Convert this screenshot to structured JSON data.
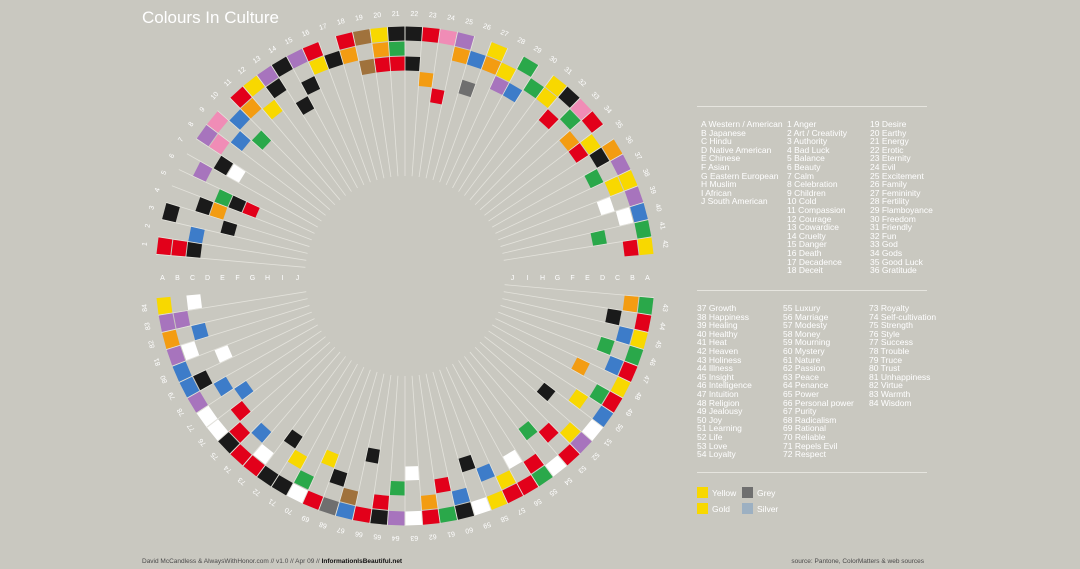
{
  "title": "Colours In Culture",
  "credit": {
    "left": "David McCandless & AlwaysWithHonor.com // v1.0 // Apr 09 //",
    "brand": "InformationIsBeautiful.net"
  },
  "source": "source: Pantone, ColorMatters & web sources",
  "colors": {
    "yellow": "#f8d800",
    "gold": "#f39c12",
    "grey": "#6f6f6f",
    "silver": "#9cb0c2",
    "red": "#e2001a",
    "black": "#1a1a1a",
    "white": "#ffffff",
    "green": "#2aa84a",
    "blue": "#3d7cc9",
    "purple": "#a774bd",
    "pink": "#f08cb6",
    "brown": "#a0723c",
    "orange": "#f39c12"
  },
  "cultures": [
    "A Western / American",
    "B Japanese",
    "C Hindu",
    "D Native American",
    "E Chinese",
    "F Asian",
    "G Eastern European",
    "H Muslim",
    "I African",
    "J South American"
  ],
  "culture_letters": [
    "A",
    "B",
    "C",
    "D",
    "E",
    "F",
    "G",
    "H",
    "I",
    "J"
  ],
  "meanings_1": [
    "1 Anger",
    "2 Art / Creativity",
    "3 Authority",
    "4 Bad Luck",
    "5 Balance",
    "6 Beauty",
    "7 Calm",
    "8 Celebration",
    "9 Children",
    "10 Cold",
    "11 Compassion",
    "12 Courage",
    "13 Cowardice",
    "14 Cruelty",
    "15 Danger",
    "16 Death",
    "17 Decadence",
    "18 Deceit"
  ],
  "meanings_2": [
    "19 Desire",
    "20 Earthy",
    "21 Energy",
    "22 Erotic",
    "23 Eternity",
    "24 Evil",
    "25 Excitement",
    "26 Family",
    "27 Femininity",
    "28 Fertility",
    "29 Flamboyance",
    "30 Freedom",
    "31 Friendly",
    "32 Fun",
    "33 God",
    "34 Gods",
    "35 Good Luck",
    "36 Gratitude"
  ],
  "meanings_3": [
    "37 Growth",
    "38 Happiness",
    "39 Healing",
    "40 Healthy",
    "41 Heat",
    "42 Heaven",
    "43 Holiness",
    "44 Illness",
    "45 Insight",
    "46 Intelligence",
    "47 Intuition",
    "48 Religion",
    "49 Jealousy",
    "50 Joy",
    "51 Learning",
    "52 Life",
    "53 Love",
    "54 Loyalty"
  ],
  "meanings_4": [
    "55 Luxury",
    "56 Marriage",
    "57 Modesty",
    "58 Money",
    "59 Mourning",
    "60 Mystery",
    "61 Nature",
    "62 Passion",
    "63 Peace",
    "64 Penance",
    "65 Power",
    "66 Personal power",
    "67 Purity",
    "68 Radicalism",
    "69 Rational",
    "70 Reliable",
    "71 Repels Evil",
    "72 Respect"
  ],
  "meanings_5": [
    "73 Royalty",
    "74 Self-cultivation",
    "75 Strength",
    "76 Style",
    "77 Success",
    "78 Trouble",
    "79 Truce",
    "80 Trust",
    "81 Unhappiness",
    "82 Virtue",
    "83 Warmth",
    "84 Wisdom"
  ],
  "swatches": [
    {
      "label": "Yellow",
      "color": "#f8d800"
    },
    {
      "label": "Grey",
      "color": "#6f6f6f"
    },
    {
      "label": "Gold",
      "color": "#f8d800"
    },
    {
      "label": "Silver",
      "color": "#9cb0c2"
    }
  ],
  "wheel": {
    "spokes": 84,
    "rings": 10,
    "cells": [
      [
        1,
        0,
        "red"
      ],
      [
        1,
        1,
        "red"
      ],
      [
        1,
        2,
        "black"
      ],
      [
        2,
        2,
        "blue"
      ],
      [
        3,
        0,
        "black"
      ],
      [
        3,
        4,
        "black"
      ],
      [
        4,
        2,
        "black"
      ],
      [
        4,
        3,
        "gold"
      ],
      [
        5,
        4,
        "black"
      ],
      [
        5,
        3,
        "green"
      ],
      [
        5,
        5,
        "red"
      ],
      [
        6,
        1,
        "purple"
      ],
      [
        7,
        2,
        "black"
      ],
      [
        7,
        3,
        "white"
      ],
      [
        8,
        0,
        "purple"
      ],
      [
        8,
        1,
        "pink"
      ],
      [
        9,
        0,
        "pink"
      ],
      [
        9,
        2,
        "blue"
      ],
      [
        10,
        1,
        "blue"
      ],
      [
        10,
        3,
        "green"
      ],
      [
        11,
        0,
        "red"
      ],
      [
        11,
        1,
        "gold"
      ],
      [
        12,
        0,
        "yellow"
      ],
      [
        12,
        2,
        "yellow"
      ],
      [
        13,
        0,
        "purple"
      ],
      [
        13,
        1,
        "black"
      ],
      [
        14,
        0,
        "black"
      ],
      [
        14,
        3,
        "black"
      ],
      [
        15,
        0,
        "purple"
      ],
      [
        15,
        2,
        "black"
      ],
      [
        16,
        0,
        "red"
      ],
      [
        16,
        1,
        "yellow"
      ],
      [
        17,
        1,
        "black"
      ],
      [
        18,
        0,
        "red"
      ],
      [
        18,
        1,
        "gold"
      ],
      [
        19,
        0,
        "brown"
      ],
      [
        19,
        2,
        "brown"
      ],
      [
        20,
        0,
        "yellow"
      ],
      [
        20,
        1,
        "gold"
      ],
      [
        20,
        2,
        "red"
      ],
      [
        21,
        0,
        "black"
      ],
      [
        21,
        1,
        "green"
      ],
      [
        21,
        2,
        "red"
      ],
      [
        22,
        0,
        "black"
      ],
      [
        22,
        2,
        "black"
      ],
      [
        23,
        0,
        "red"
      ],
      [
        23,
        3,
        "gold"
      ],
      [
        24,
        0,
        "pink"
      ],
      [
        24,
        4,
        "red"
      ],
      [
        25,
        0,
        "purple"
      ],
      [
        25,
        1,
        "gold"
      ],
      [
        26,
        1,
        "blue"
      ],
      [
        26,
        3,
        "grey"
      ],
      [
        27,
        0,
        "yellow"
      ],
      [
        27,
        1,
        "gold"
      ],
      [
        28,
        1,
        "yellow"
      ],
      [
        28,
        2,
        "purple"
      ],
      [
        29,
        0,
        "green"
      ],
      [
        29,
        2,
        "blue"
      ],
      [
        30,
        1,
        "green"
      ],
      [
        31,
        0,
        "yellow"
      ],
      [
        31,
        1,
        "yellow"
      ],
      [
        32,
        0,
        "black"
      ],
      [
        32,
        2,
        "red"
      ],
      [
        33,
        0,
        "pink"
      ],
      [
        33,
        1,
        "green"
      ],
      [
        34,
        0,
        "red"
      ],
      [
        34,
        2,
        "gold"
      ],
      [
        35,
        2,
        "red"
      ],
      [
        35,
        1,
        "yellow"
      ],
      [
        36,
        0,
        "gold"
      ],
      [
        36,
        1,
        "black"
      ],
      [
        37,
        0,
        "purple"
      ],
      [
        37,
        2,
        "green"
      ],
      [
        38,
        0,
        "yellow"
      ],
      [
        38,
        1,
        "yellow"
      ],
      [
        39,
        0,
        "purple"
      ],
      [
        39,
        2,
        "white"
      ],
      [
        40,
        0,
        "blue"
      ],
      [
        40,
        1,
        "white"
      ],
      [
        41,
        0,
        "green"
      ],
      [
        41,
        3,
        "green"
      ],
      [
        42,
        0,
        "yellow"
      ],
      [
        42,
        1,
        "red"
      ],
      [
        43,
        0,
        "green"
      ],
      [
        43,
        1,
        "gold"
      ],
      [
        44,
        0,
        "red"
      ],
      [
        44,
        2,
        "black"
      ],
      [
        45,
        0,
        "yellow"
      ],
      [
        45,
        1,
        "blue"
      ],
      [
        46,
        0,
        "green"
      ],
      [
        46,
        2,
        "green"
      ],
      [
        47,
        0,
        "red"
      ],
      [
        47,
        1,
        "blue"
      ],
      [
        48,
        0,
        "yellow"
      ],
      [
        48,
        3,
        "gold"
      ],
      [
        49,
        0,
        "red"
      ],
      [
        49,
        1,
        "green"
      ],
      [
        50,
        0,
        "blue"
      ],
      [
        50,
        2,
        "yellow"
      ],
      [
        51,
        0,
        "white"
      ],
      [
        51,
        4,
        "black"
      ],
      [
        52,
        0,
        "purple"
      ],
      [
        52,
        1,
        "yellow"
      ],
      [
        53,
        0,
        "red"
      ],
      [
        53,
        2,
        "red"
      ],
      [
        54,
        0,
        "white"
      ],
      [
        54,
        3,
        "green"
      ],
      [
        55,
        0,
        "green"
      ],
      [
        55,
        1,
        "red"
      ],
      [
        56,
        0,
        "red"
      ],
      [
        56,
        2,
        "white"
      ],
      [
        57,
        0,
        "red"
      ],
      [
        57,
        1,
        "yellow"
      ],
      [
        58,
        0,
        "yellow"
      ],
      [
        58,
        2,
        "blue"
      ],
      [
        59,
        0,
        "white"
      ],
      [
        59,
        3,
        "black"
      ],
      [
        60,
        0,
        "black"
      ],
      [
        60,
        1,
        "blue"
      ],
      [
        61,
        0,
        "green"
      ],
      [
        61,
        2,
        "red"
      ],
      [
        62,
        0,
        "red"
      ],
      [
        62,
        1,
        "gold"
      ],
      [
        63,
        0,
        "white"
      ],
      [
        63,
        3,
        "white"
      ],
      [
        64,
        0,
        "purple"
      ],
      [
        64,
        2,
        "green"
      ],
      [
        65,
        0,
        "black"
      ],
      [
        65,
        1,
        "red"
      ],
      [
        66,
        0,
        "red"
      ],
      [
        66,
        4,
        "black"
      ],
      [
        67,
        0,
        "blue"
      ],
      [
        67,
        1,
        "brown"
      ],
      [
        68,
        0,
        "grey"
      ],
      [
        68,
        2,
        "black"
      ],
      [
        69,
        0,
        "red"
      ],
      [
        69,
        3,
        "yellow"
      ],
      [
        70,
        0,
        "white"
      ],
      [
        70,
        1,
        "green"
      ],
      [
        71,
        0,
        "black"
      ],
      [
        71,
        2,
        "yellow"
      ],
      [
        72,
        0,
        "black"
      ],
      [
        72,
        3,
        "black"
      ],
      [
        73,
        0,
        "red"
      ],
      [
        73,
        1,
        "white"
      ],
      [
        74,
        0,
        "red"
      ],
      [
        74,
        2,
        "blue"
      ],
      [
        75,
        0,
        "black"
      ],
      [
        75,
        1,
        "red"
      ],
      [
        76,
        0,
        "white"
      ],
      [
        76,
        2,
        "red"
      ],
      [
        77,
        0,
        "white"
      ],
      [
        77,
        3,
        "blue"
      ],
      [
        78,
        0,
        "purple"
      ],
      [
        78,
        2,
        "blue"
      ],
      [
        79,
        0,
        "blue"
      ],
      [
        79,
        1,
        "black"
      ],
      [
        80,
        0,
        "blue"
      ],
      [
        80,
        3,
        "white"
      ],
      [
        81,
        0,
        "purple"
      ],
      [
        81,
        1,
        "white"
      ],
      [
        82,
        0,
        "gold"
      ],
      [
        82,
        2,
        "blue"
      ],
      [
        83,
        0,
        "purple"
      ],
      [
        83,
        1,
        "purple"
      ],
      [
        84,
        0,
        "yellow"
      ],
      [
        84,
        2,
        "white"
      ]
    ]
  }
}
